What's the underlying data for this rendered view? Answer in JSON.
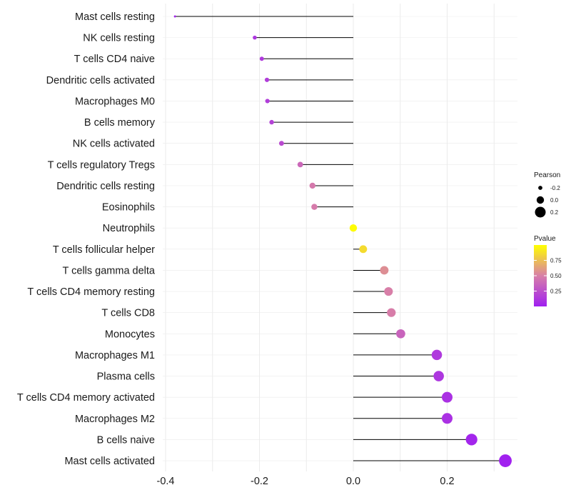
{
  "chart_data": {
    "type": "lollipop",
    "x_label": "",
    "y_label": "",
    "xlim": [
      -0.4,
      0.33
    ],
    "x_ticks": [
      "-0.4",
      "-0.2",
      "0.0",
      "0.2"
    ],
    "x_tick_values": [
      -0.4,
      -0.2,
      0.0,
      0.2
    ],
    "baseline": 0.0,
    "categories": [
      "Mast cells resting",
      "NK cells resting",
      "T cells CD4 naive",
      "Dendritic cells activated",
      "Macrophages M0",
      "B cells memory",
      "NK cells activated",
      "T cells regulatory  Tregs",
      "Dendritic cells resting",
      "Eosinophils",
      "Neutrophils",
      "T cells follicular helper",
      "T cells gamma delta",
      "T cells CD4 memory resting",
      "T cells CD8",
      "Monocytes",
      "Macrophages M1",
      "Plasma cells",
      "T cells CD4 memory activated",
      "Macrophages M2",
      "B cells naive",
      "Mast cells activated"
    ],
    "pearson": [
      -0.38,
      -0.21,
      -0.195,
      -0.184,
      -0.183,
      -0.174,
      -0.153,
      -0.113,
      -0.087,
      -0.083,
      0.0,
      0.021,
      0.066,
      0.075,
      0.081,
      0.101,
      0.178,
      0.182,
      0.2,
      0.2,
      0.252,
      0.324
    ],
    "pvalue": [
      0.03,
      0.12,
      0.13,
      0.15,
      0.15,
      0.18,
      0.22,
      0.38,
      0.47,
      0.48,
      0.99,
      0.86,
      0.56,
      0.5,
      0.49,
      0.36,
      0.13,
      0.12,
      0.09,
      0.09,
      0.03,
      0.005
    ],
    "legend_size": {
      "title": "Pearson",
      "labels": [
        "-0.2",
        "0.0",
        "0.2"
      ],
      "values": [
        -0.2,
        0.0,
        0.2
      ]
    },
    "legend_color": {
      "title": "Pvalue",
      "labels": [
        "0.75",
        "0.50",
        "0.25"
      ],
      "values": [
        0.75,
        0.5,
        0.25
      ],
      "range": [
        0.0,
        1.0
      ]
    },
    "colors": {
      "low_p": "#a020f0",
      "high_p": "#ffff00",
      "stem": "#000000",
      "grid": "#ebebeb"
    }
  }
}
